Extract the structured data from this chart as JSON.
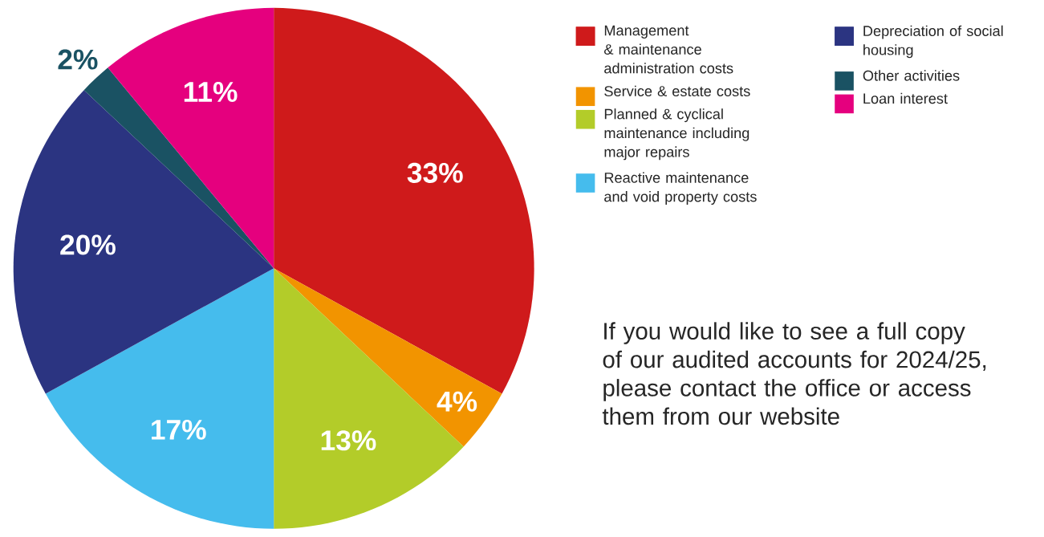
{
  "chart_data": {
    "type": "pie",
    "categories": [
      "Management & maintenance administration costs",
      "Service & estate costs",
      "Planned & cyclical maintenance including major repairs",
      "Reactive maintenance and void property costs",
      "Depreciation of social housing",
      "Other activities",
      "Loan interest"
    ],
    "values": [
      33,
      4,
      13,
      17,
      20,
      2,
      11
    ],
    "colors": [
      "#cf1a1b",
      "#f29400",
      "#b3cc29",
      "#45bced",
      "#2b3481",
      "#1a5263",
      "#e5007e"
    ],
    "value_labels": [
      "33%",
      "4%",
      "13%",
      "17%",
      "20%",
      "2%",
      "11%"
    ],
    "legend": "right",
    "annotations": [
      "If you would like to see a full copy of our audited accounts for 2024/25, please contact the office or access them from our website"
    ]
  }
}
